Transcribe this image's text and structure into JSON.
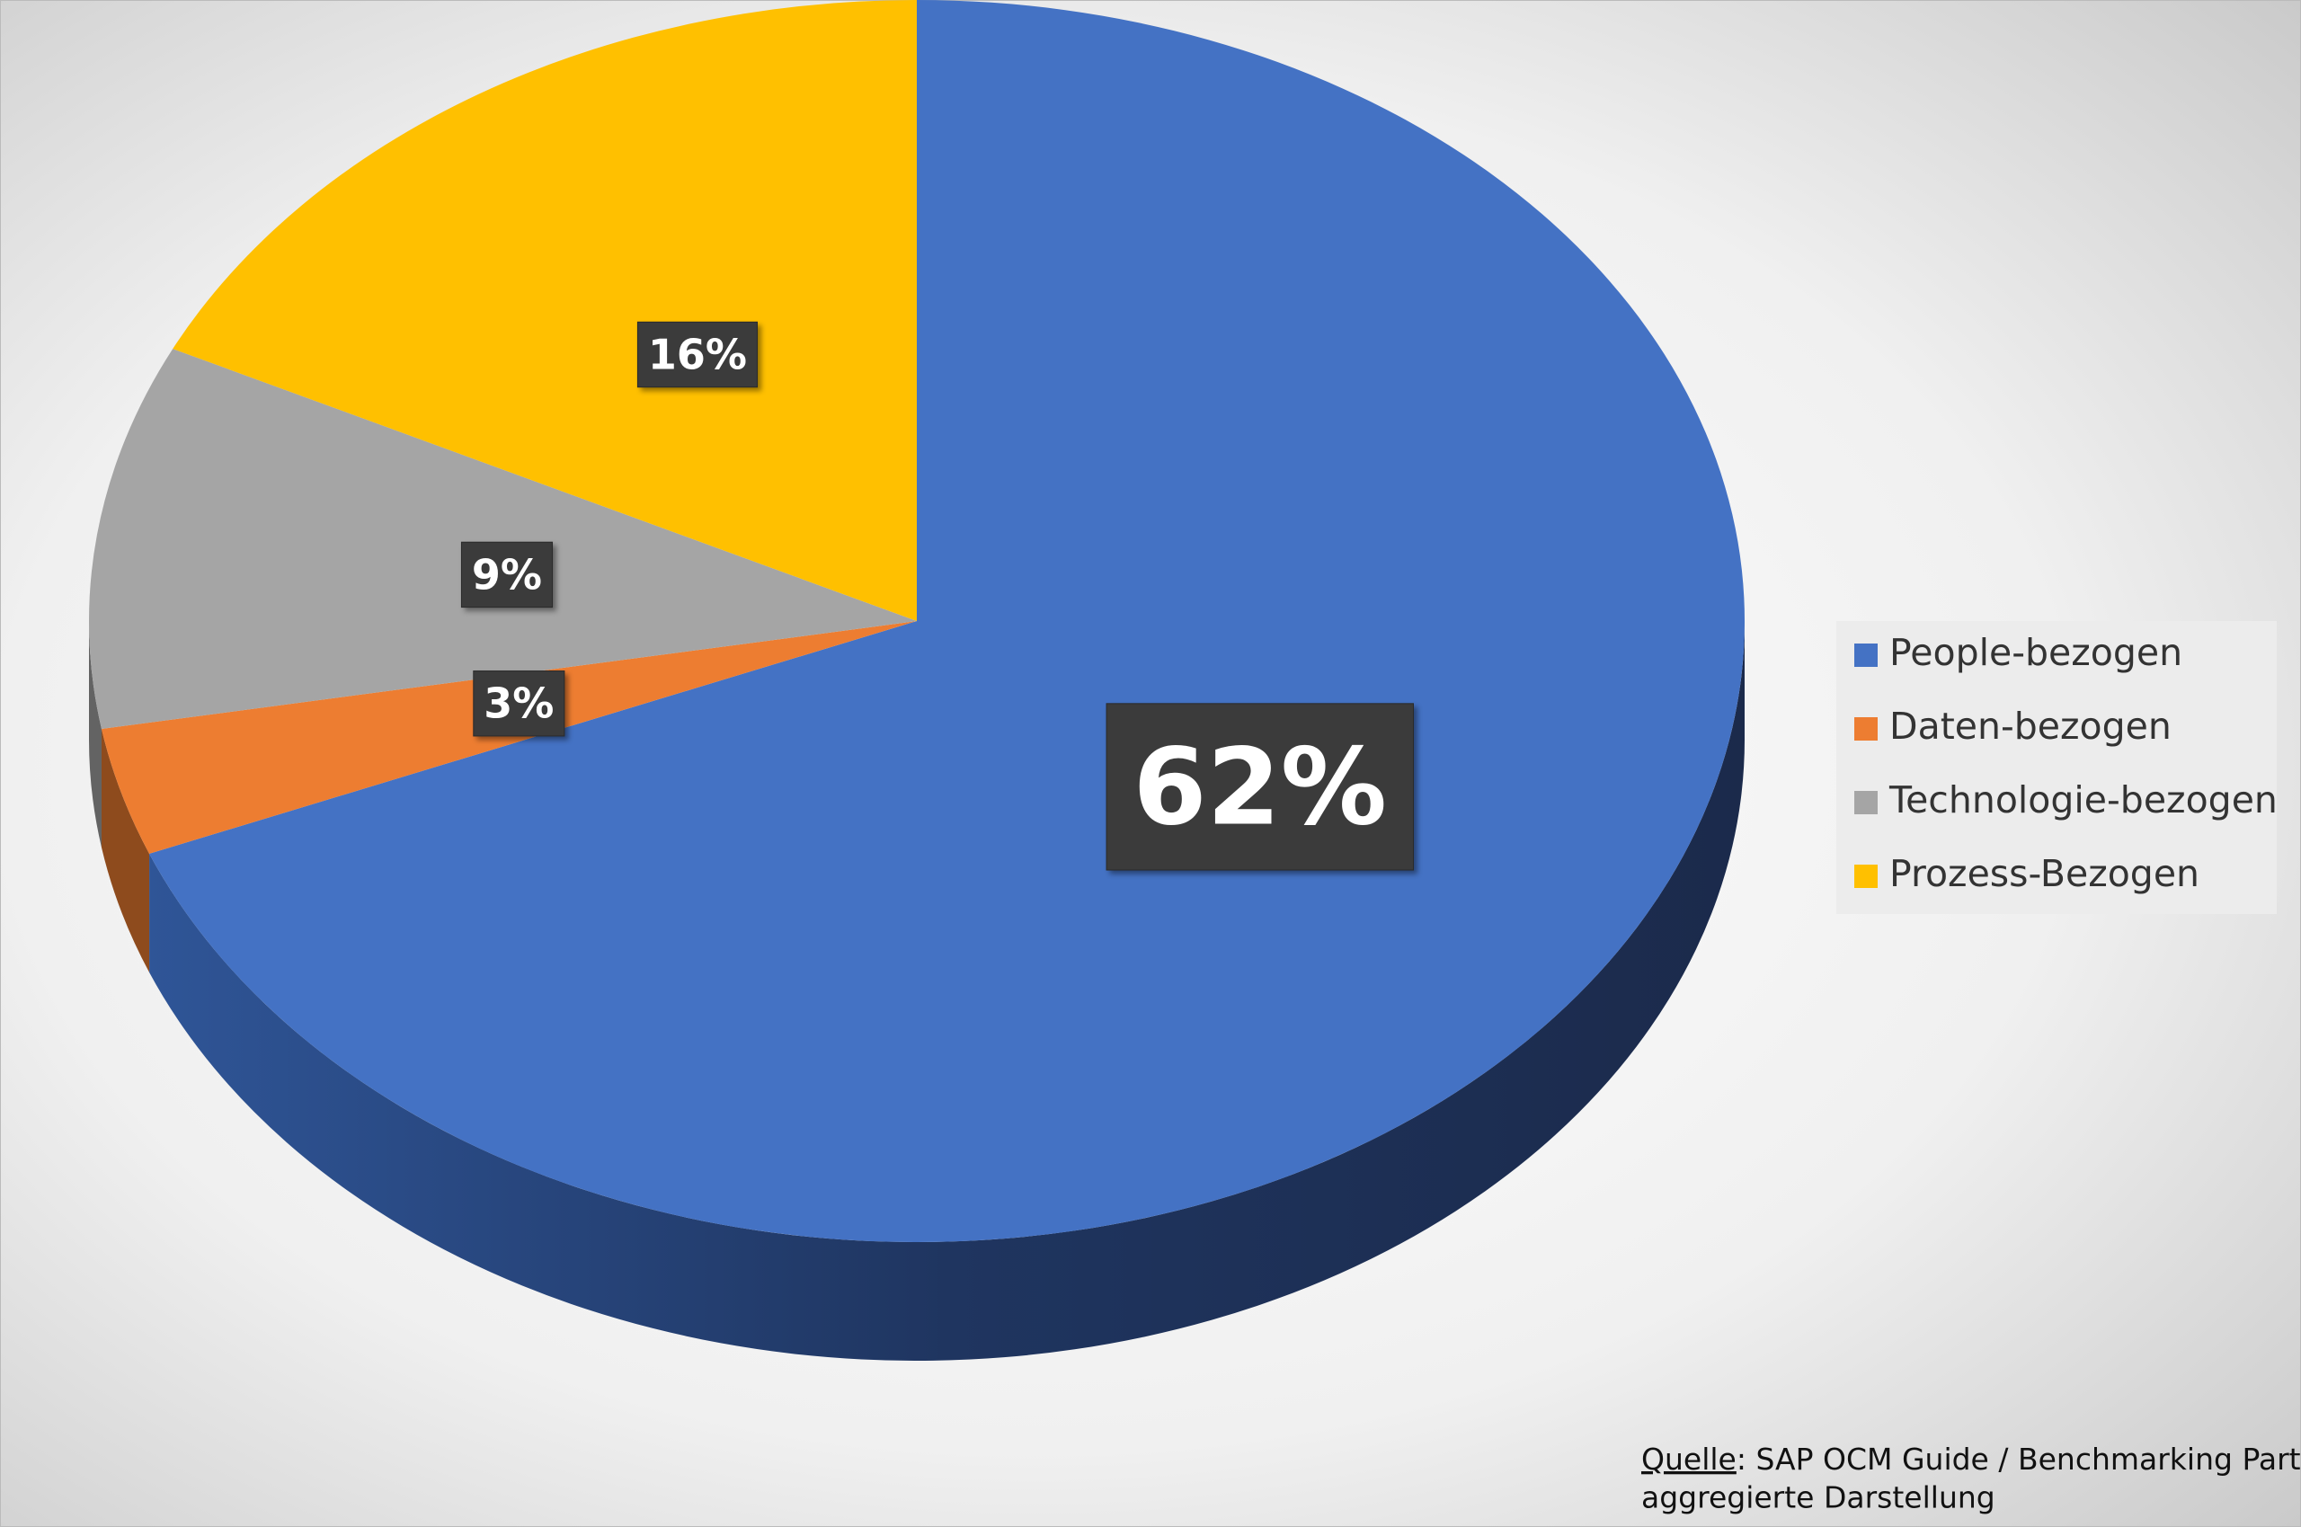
{
  "chart_data": {
    "type": "pie3d",
    "categories": [
      "People-bezogen",
      "Daten-bezogen",
      "Technologie-bezogen",
      "Prozess-Bezogen"
    ],
    "values": [
      62,
      3,
      9,
      16
    ],
    "value_labels": [
      "62%",
      "3%",
      "9%",
      "16%"
    ],
    "colors": [
      "#4472c4",
      "#ed7d31",
      "#a5a5a5",
      "#ffc000"
    ],
    "legend": "right",
    "source_label": "Quelle",
    "source_text": ": SAP OCM Guide / Benchmarking Partners",
    "source_note": "aggregierte Darstellung"
  }
}
